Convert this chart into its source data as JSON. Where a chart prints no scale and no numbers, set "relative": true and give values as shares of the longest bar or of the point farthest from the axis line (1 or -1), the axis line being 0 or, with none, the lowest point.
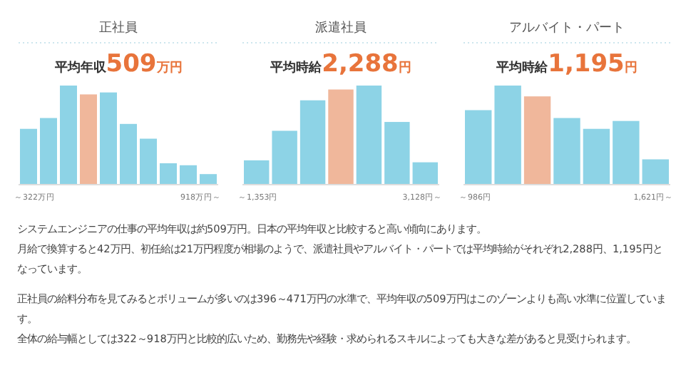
{
  "chart_data": [
    {
      "type": "bar",
      "title": "正社員",
      "subtitle": "平均年収509万円",
      "relative": true,
      "categories": [
        "～322万円",
        null,
        null,
        null,
        null,
        null,
        null,
        null,
        null,
        "918万円～"
      ],
      "values": [
        0.56,
        0.67,
        1,
        0.91,
        0.93,
        0.61,
        0.46,
        0.21,
        0.19,
        0.1
      ],
      "colors": [
        "#8dd3e6",
        "#8dd3e6",
        "#8dd3e6",
        "#f0b79b",
        "#8dd3e6",
        "#8dd3e6",
        "#8dd3e6",
        "#8dd3e6",
        "#8dd3e6",
        "#8dd3e6"
      ]
    },
    {
      "type": "bar",
      "title": "派遣社員",
      "subtitle": "平均時給2,288円",
      "relative": true,
      "categories": [
        "～1,353円",
        null,
        null,
        null,
        null,
        null,
        "3,128円～"
      ],
      "values": [
        0.24,
        0.54,
        0.85,
        0.96,
        1,
        0.63,
        0.22
      ],
      "colors": [
        "#8dd3e6",
        "#8dd3e6",
        "#8dd3e6",
        "#f0b79b",
        "#8dd3e6",
        "#8dd3e6",
        "#8dd3e6"
      ]
    },
    {
      "type": "bar",
      "title": "アルバイト・パート",
      "subtitle": "平均時給1,195円",
      "relative": true,
      "categories": [
        "～986円",
        null,
        null,
        null,
        null,
        null,
        "1,621円～"
      ],
      "values": [
        0.75,
        1,
        0.89,
        0.67,
        0.56,
        0.64,
        0.25
      ],
      "colors": [
        "#8dd3e6",
        "#8dd3e6",
        "#f0b79b",
        "#8dd3e6",
        "#8dd3e6",
        "#8dd3e6",
        "#8dd3e6"
      ]
    },
    {
      "type": "other",
      "annotations": [
        "システムエンジニアの仕事の平均年収は約509万円。日本の平均年収と比較すると高い傾向にあります。",
        "月給で換算すると42万円、初任給は21万円程度が相場のようで、派遣社員やアルバイト・パートでは平均時給がそれぞれ2,288円、1,195円となっています。",
        "正社員の給料分布を見てみるとボリュームが多いのは396～471万円の水準で、平均年収の509万円はこのゾーンよりも高い水準に位置しています。",
        "全体の給与幅としては322～918万円と比較的広いため、勤務先や経験・求められるスキルによっても大きな差があると見受けられます。"
      ]
    }
  ]
}
